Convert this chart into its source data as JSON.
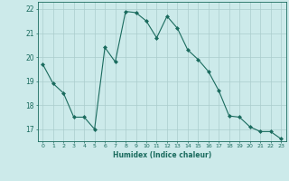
{
  "x": [
    0,
    1,
    2,
    3,
    4,
    5,
    6,
    7,
    8,
    9,
    10,
    11,
    12,
    13,
    14,
    15,
    16,
    17,
    18,
    19,
    20,
    21,
    22,
    23
  ],
  "y": [
    19.7,
    18.9,
    18.5,
    17.5,
    17.5,
    17.0,
    20.4,
    19.8,
    21.9,
    21.85,
    21.5,
    20.8,
    21.7,
    21.2,
    20.3,
    19.9,
    19.4,
    18.6,
    17.55,
    17.5,
    17.1,
    16.9,
    16.9,
    16.6
  ],
  "xlabel": "Humidex (Indice chaleur)",
  "xlim": [
    -0.5,
    23.5
  ],
  "ylim": [
    16.5,
    22.3
  ],
  "yticks": [
    17,
    18,
    19,
    20,
    21,
    22
  ],
  "xticks": [
    0,
    1,
    2,
    3,
    4,
    5,
    6,
    7,
    8,
    9,
    10,
    11,
    12,
    13,
    14,
    15,
    16,
    17,
    18,
    19,
    20,
    21,
    22,
    23
  ],
  "line_color": "#1a6b5e",
  "marker": "D",
  "marker_size": 2,
  "bg_color": "#cceaea",
  "grid_color": "#aacccc",
  "label_color": "#1a6b5e",
  "tick_color": "#1a6b5e",
  "spine_color": "#1a6b5e"
}
